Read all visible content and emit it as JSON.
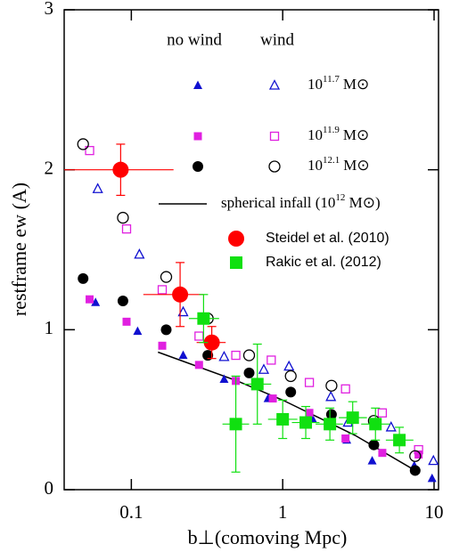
{
  "chart_data": {
    "type": "scatter",
    "xlabel": "b⊥(comoving Mpc)",
    "ylabel": "restframe ew (A)",
    "xscale": "log",
    "xlim": [
      0.036,
      10.7
    ],
    "ylim": [
      0,
      3
    ],
    "xticks": [
      0.1,
      1,
      10
    ],
    "yticks": [
      0,
      1,
      2,
      3
    ],
    "legend_columns": [
      "no wind",
      "wind"
    ],
    "models": [
      {
        "mass": [
          "10",
          "11.7",
          "M⊙"
        ],
        "color": "#1010d0",
        "marker": "triangle",
        "no_wind": {
          "x": [
            0.058,
            0.11,
            0.22,
            0.41,
            0.8,
            1.58,
            2.65,
            3.9,
            7.4,
            9.7
          ],
          "values": [
            1.17,
            0.99,
            0.84,
            0.69,
            0.57,
            0.44,
            0.31,
            0.18,
            0.15,
            0.07
          ]
        },
        "wind": {
          "x": [
            0.06,
            0.113,
            0.22,
            0.41,
            0.75,
            1.1,
            2.08,
            2.7,
            5.2,
            9.9
          ],
          "values": [
            1.88,
            1.47,
            1.11,
            0.83,
            0.75,
            0.77,
            0.58,
            0.42,
            0.39,
            0.18
          ]
        }
      },
      {
        "mass": [
          "10",
          "11.9",
          "M⊙"
        ],
        "color": "#e020e0",
        "marker": "square",
        "no_wind": {
          "x": [
            0.053,
            0.093,
            0.16,
            0.28,
            0.49,
            0.86,
            1.5,
            2.6,
            4.55,
            7.9
          ],
          "values": [
            1.19,
            1.05,
            0.9,
            0.78,
            0.68,
            0.57,
            0.48,
            0.32,
            0.23,
            0.22
          ]
        },
        "wind": {
          "x": [
            0.053,
            0.093,
            0.16,
            0.28,
            0.49,
            0.84,
            1.5,
            2.6,
            4.55,
            7.9
          ],
          "values": [
            2.12,
            1.63,
            1.25,
            0.96,
            0.84,
            0.81,
            0.67,
            0.63,
            0.48,
            0.25
          ]
        }
      },
      {
        "mass": [
          "10",
          "12.1",
          "M⊙"
        ],
        "color": "#000000",
        "marker": "circle",
        "no_wind": {
          "x": [
            0.048,
            0.088,
            0.17,
            0.32,
            0.6,
            1.13,
            2.1,
            4.0,
            7.5
          ],
          "values": [
            1.32,
            1.18,
            1.0,
            0.84,
            0.73,
            0.61,
            0.47,
            0.28,
            0.12
          ]
        },
        "wind": {
          "x": [
            0.048,
            0.088,
            0.17,
            0.32,
            0.6,
            1.13,
            2.1,
            4.0,
            7.5
          ],
          "values": [
            2.16,
            1.7,
            1.33,
            1.07,
            0.84,
            0.71,
            0.65,
            0.43,
            0.21
          ]
        }
      }
    ],
    "infall": {
      "label": [
        "spherical infall (10",
        "12",
        " M⊙)"
      ],
      "color": "#000000",
      "x": [
        0.15,
        0.5,
        1,
        3,
        7.5
      ],
      "values": [
        0.86,
        0.68,
        0.56,
        0.34,
        0.12
      ]
    },
    "observations": [
      {
        "name": "Steidel et al. (2010)",
        "color": "#ff0000",
        "marker": "circle",
        "x": [
          0.085,
          0.21,
          0.34
        ],
        "values": [
          2.0,
          1.22,
          0.92
        ],
        "errors": [
          0.16,
          0.2,
          0.1
        ],
        "x_low": [
          0.036,
          0.12,
          0.27
        ],
        "x_high": [
          0.19,
          0.3,
          0.42
        ]
      },
      {
        "name": "Rakic et al. (2012)",
        "color": "#10e010",
        "marker": "square",
        "x": [
          0.3,
          0.49,
          0.68,
          1.0,
          1.42,
          2.05,
          2.9,
          4.1,
          5.9
        ],
        "values": [
          1.07,
          0.41,
          0.66,
          0.44,
          0.42,
          0.41,
          0.45,
          0.41,
          0.31
        ],
        "errors": [
          0.15,
          0.3,
          0.25,
          0.12,
          0.1,
          0.1,
          0.1,
          0.1,
          0.08
        ],
        "x_low": [
          0.24,
          0.4,
          0.55,
          0.8,
          1.15,
          1.65,
          2.35,
          3.3,
          4.8
        ],
        "x_high": [
          0.38,
          0.6,
          0.84,
          1.25,
          1.75,
          2.5,
          3.6,
          5.1,
          7.3
        ]
      }
    ]
  }
}
